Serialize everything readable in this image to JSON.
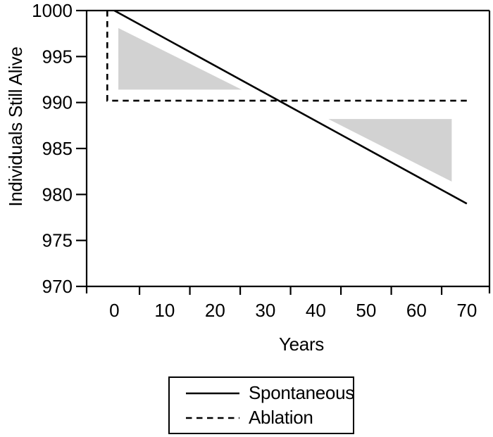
{
  "colors": {
    "ink": "#000000",
    "background": "#ffffff",
    "shade": "#d2d2d2"
  },
  "chart_data": {
    "type": "line",
    "title": "",
    "xlabel": "Years",
    "ylabel": "Individuals Still Alive",
    "xlim": [
      -5.5,
      74.5
    ],
    "ylim": [
      970,
      1000
    ],
    "grid": "off",
    "frame": "full-box",
    "x_tick_label_values": [
      0,
      10,
      20,
      30,
      40,
      50,
      60,
      70
    ],
    "x_tick_mark_values": [
      5,
      15,
      25,
      35,
      45,
      55,
      65
    ],
    "y_tick_values": [
      970,
      975,
      980,
      985,
      990,
      995,
      1000
    ],
    "series": [
      {
        "name": "Spontaneous",
        "line_style": "solid",
        "color": "#000000",
        "points": [
          [
            0,
            1000
          ],
          [
            70,
            979
          ]
        ]
      },
      {
        "name": "Ablation",
        "line_style": "dashed",
        "color": "#000000",
        "points": [
          [
            -1.4,
            1000
          ],
          [
            -1.4,
            990.2
          ],
          [
            70.3,
            990.2
          ]
        ]
      }
    ],
    "shaded_regions": [
      {
        "name": "early-harm-triangle",
        "fill": "#d2d2d2",
        "points": [
          [
            0.8,
            998.1
          ],
          [
            0.8,
            991.4
          ],
          [
            25.3,
            991.4
          ]
        ]
      },
      {
        "name": "late-benefit-triangle",
        "fill": "#d2d2d2",
        "points": [
          [
            42.5,
            988.2
          ],
          [
            67,
            988.2
          ],
          [
            67,
            981.4
          ]
        ]
      }
    ],
    "legend": {
      "position": "bottom-center",
      "entries": [
        {
          "label": "Spontaneous",
          "line_style": "solid"
        },
        {
          "label": "Ablation",
          "line_style": "dashed"
        }
      ]
    }
  }
}
